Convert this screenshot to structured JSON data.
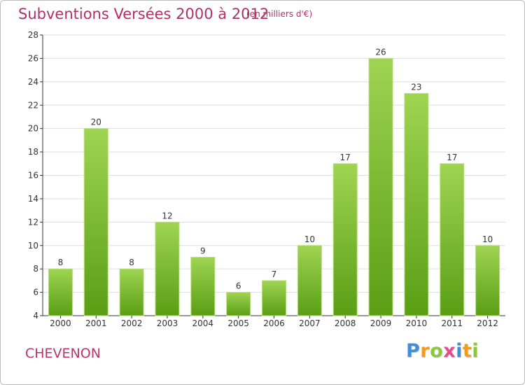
{
  "header": {
    "title": "Subventions Versées 2000 à 2012",
    "unit": "(en milliers d'€)"
  },
  "commune": "CHEVENON",
  "logo": {
    "letters": [
      {
        "ch": "P",
        "color": "#3d8fd6"
      },
      {
        "ch": "r",
        "color": "#f29a1e"
      },
      {
        "ch": "o",
        "color": "#8cc63f"
      },
      {
        "ch": "x",
        "color": "#e84a8c"
      },
      {
        "ch": "i",
        "color": "#3d8fd6"
      },
      {
        "ch": "t",
        "color": "#f29a1e"
      },
      {
        "ch": "i",
        "color": "#8cc63f"
      }
    ]
  },
  "colors": {
    "bar_top": "#9fd452",
    "bar_bottom": "#5a9e14",
    "grid": "#dddddd",
    "axis": "#333333"
  },
  "chart_data": {
    "type": "bar",
    "title": "Subventions Versées 2000 à 2012",
    "subtitle": "(en milliers d'€)",
    "categories": [
      "2000",
      "2001",
      "2002",
      "2003",
      "2004",
      "2005",
      "2006",
      "2007",
      "2008",
      "2009",
      "2010",
      "2011",
      "2012"
    ],
    "values": [
      8,
      20,
      8,
      12,
      9,
      6,
      7,
      10,
      17,
      26,
      23,
      17,
      10
    ],
    "ylim": [
      4,
      28
    ],
    "yticks": [
      4,
      6,
      8,
      10,
      12,
      14,
      16,
      18,
      20,
      22,
      24,
      26,
      28
    ],
    "grid": true
  }
}
